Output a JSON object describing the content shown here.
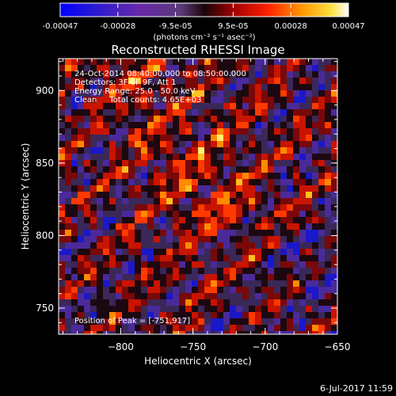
{
  "colorbar": {
    "ticks": [
      "-0.00047",
      "-0.00028",
      "-9.5e-05",
      "9.5e-05",
      "0.00028",
      "0.00047"
    ],
    "unit_label": "(photons cm⁻² s⁻¹ asec⁻²)",
    "range": [
      -0.00047,
      0.00047
    ]
  },
  "chart_data": {
    "type": "heatmap",
    "title": "Reconstructed RHESSI Image",
    "xlabel": "Heliocentric X (arcsec)",
    "ylabel": "Heliocentric Y (arcsec)",
    "xlim": [
      -843,
      -650
    ],
    "ylim": [
      732,
      922
    ],
    "x_ticks": [
      {
        "value": -800,
        "label": "−800"
      },
      {
        "value": -750,
        "label": "−750"
      },
      {
        "value": -700,
        "label": "−700"
      },
      {
        "value": -650,
        "label": "−650"
      }
    ],
    "y_ticks": [
      {
        "value": 750,
        "label": "750"
      },
      {
        "value": 800,
        "label": "800"
      },
      {
        "value": 850,
        "label": "850"
      },
      {
        "value": 900,
        "label": "900"
      }
    ],
    "info_lines": [
      "24-Oct-2014 08:40:00.000 to 08:50:00.000",
      "Detectors: 3F 6F 9F, Att 1",
      "Energy Range: 25.0 - 50.0 keV",
      "Clean     Total counts: 4.65E+03"
    ],
    "peak_label": "Position of Peak = [-751,917]",
    "peak": [
      -751,
      917
    ],
    "grid": false
  },
  "footer": {
    "timestamp": "6-Jul-2017 11:59"
  }
}
